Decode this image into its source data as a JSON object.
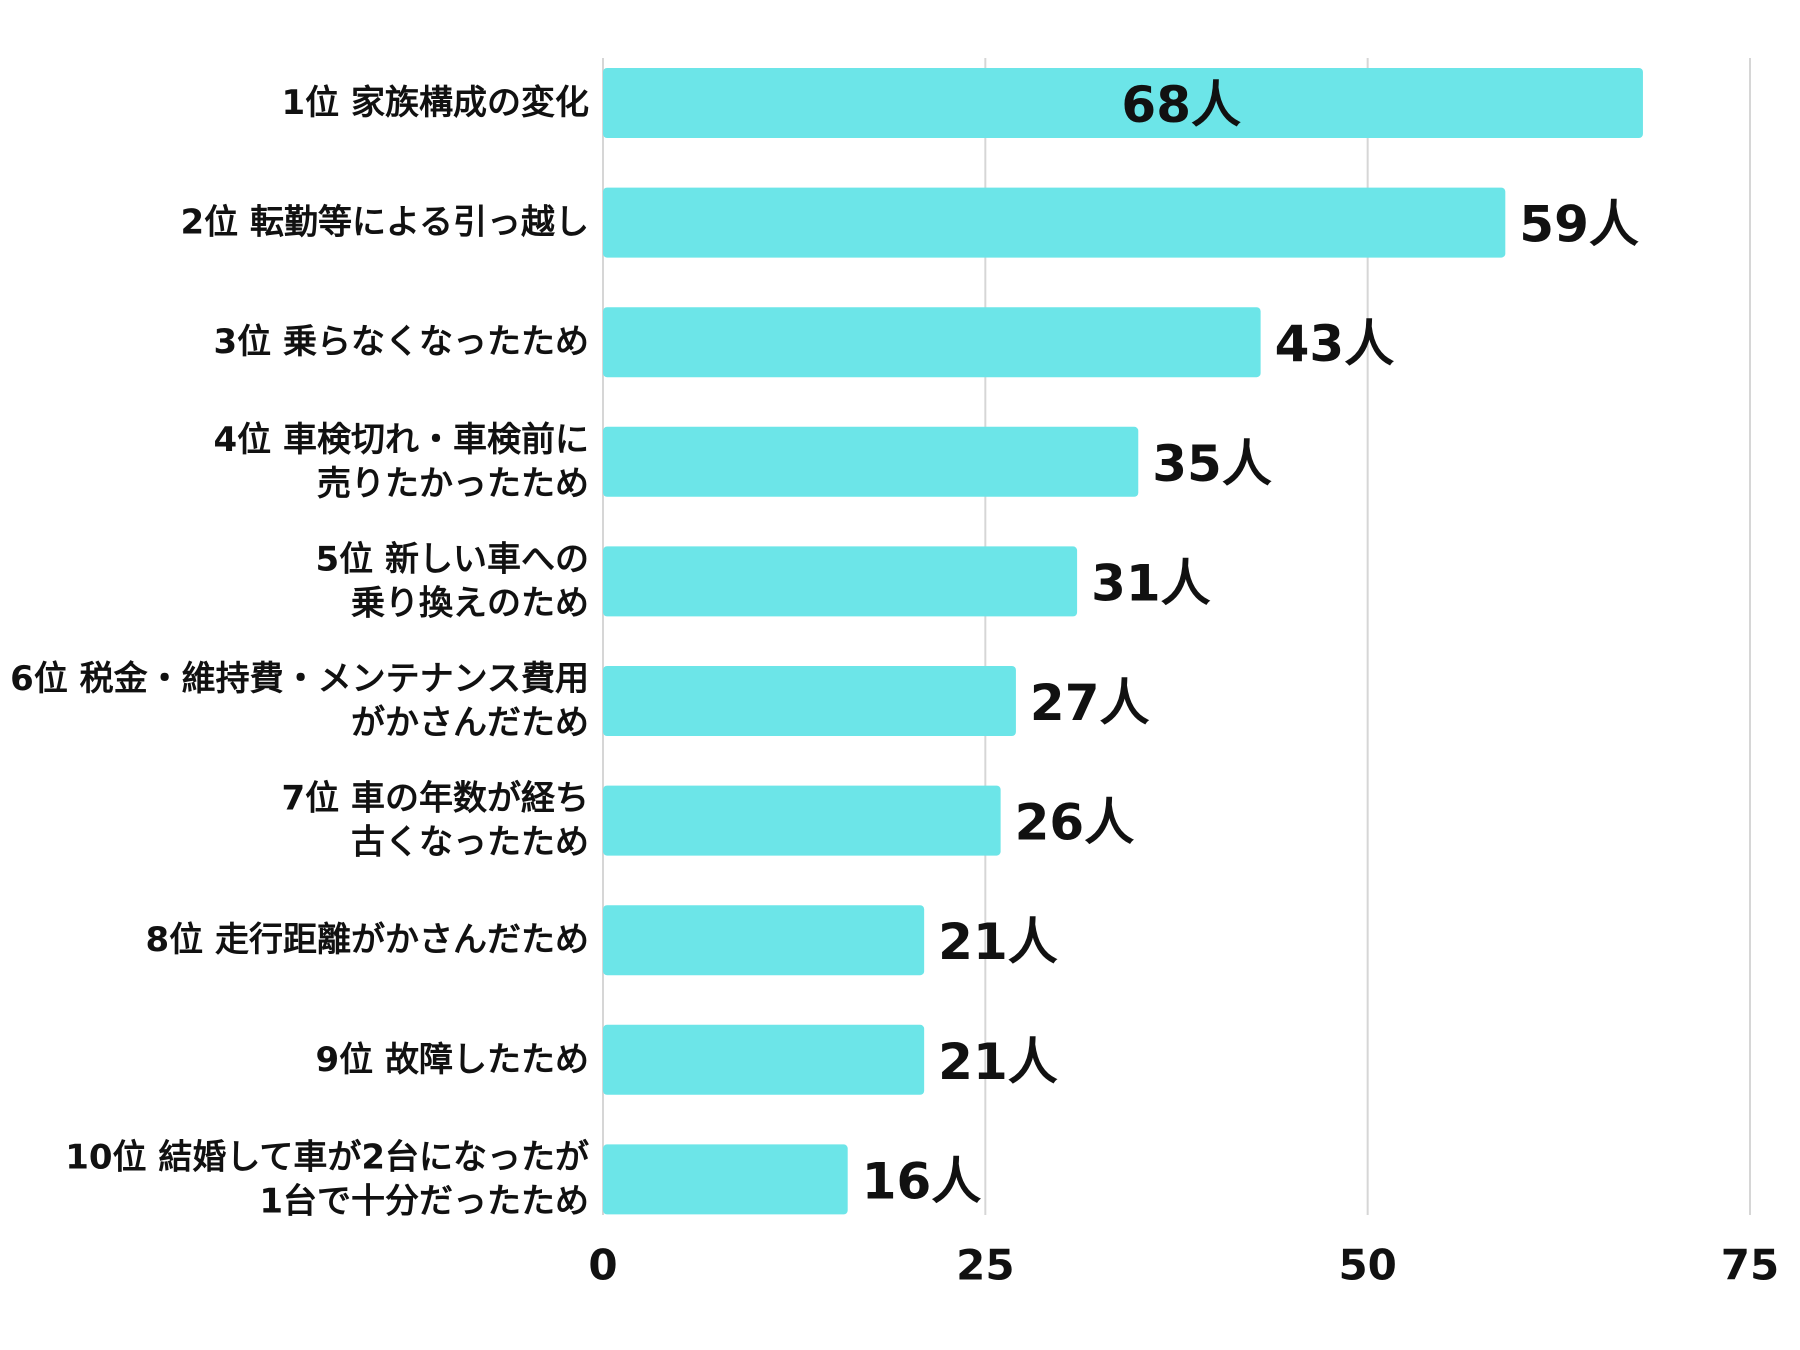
{
  "chart_data": {
    "type": "bar",
    "orientation": "horizontal",
    "title": "",
    "xlabel": "",
    "ylabel": "",
    "xlim": [
      0,
      75
    ],
    "ticks": [
      0,
      25,
      50,
      75
    ],
    "tick_labels": [
      "0",
      "25",
      "50",
      "75"
    ],
    "grid": true,
    "bar_color": "#6ce5e8",
    "categories": [
      "1位 家族構成の変化",
      "2位 転勤等による引っ越し",
      "3位 乗らなくなったため",
      "4位 車検切れ・車検前に\n売りたかったため",
      "5位 新しい車への\n乗り換えのため",
      "6位 税金・維持費・メンテナンス費用\nがかさんだため",
      "7位 車の年数が経ち\n古くなったため",
      "8位 走行距離がかさんだため",
      "9位 故障したため",
      "10位 結婚して車が2台になったが\n1台で十分だったため"
    ],
    "values": [
      68,
      59,
      43,
      35,
      31,
      27,
      26,
      21,
      21,
      16
    ],
    "data_labels": [
      "68人",
      "59人",
      "43人",
      "35人",
      "31人",
      "27人",
      "26人",
      "21人",
      "21人",
      "16人"
    ]
  }
}
